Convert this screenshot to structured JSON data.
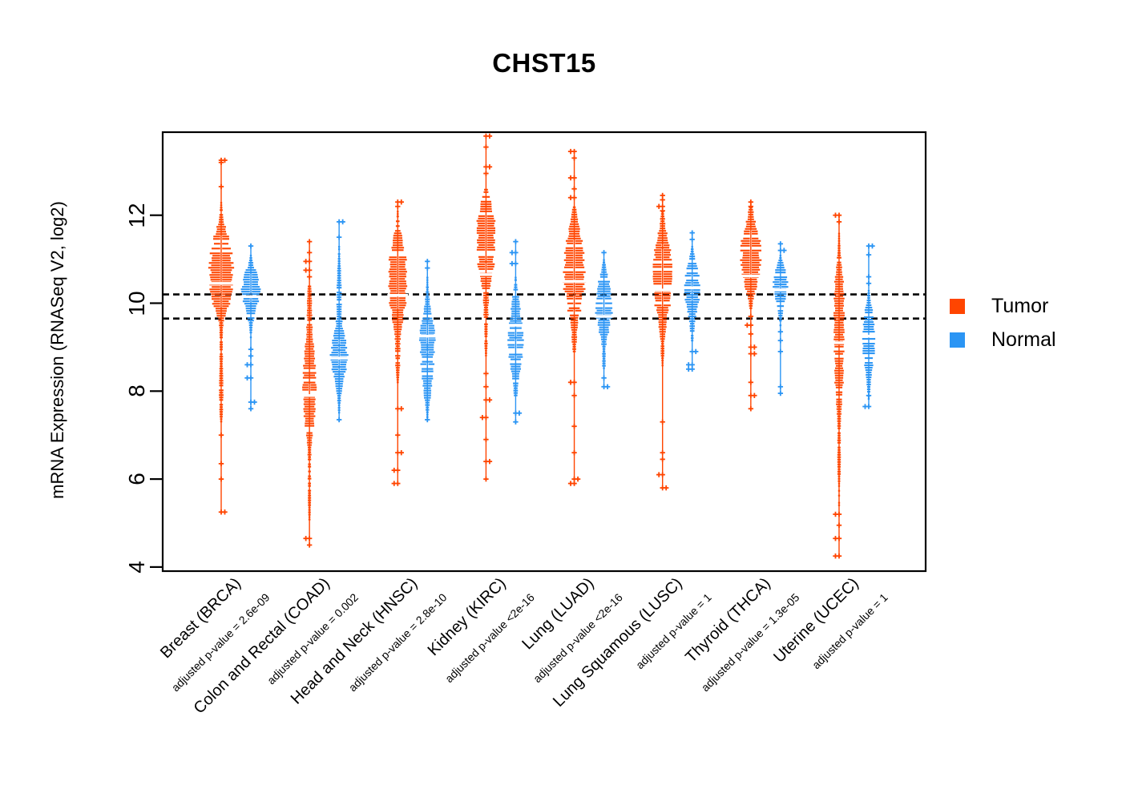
{
  "title": "CHST15",
  "y_axis": {
    "label": "mRNA Expression (RNASeq V2, log2)"
  },
  "legend": {
    "items": [
      {
        "label": "Tumor",
        "color": "#FF4500"
      },
      {
        "label": "Normal",
        "color": "#2B95F4"
      }
    ]
  },
  "chart_data": {
    "type": "violin-strip",
    "title": "CHST15",
    "ylabel": "mRNA Expression (RNASeq V2, log2)",
    "ylim": [
      3.9,
      13.9
    ],
    "y_ticks": [
      4,
      6,
      8,
      10,
      12
    ],
    "grid": false,
    "legend_position": "right",
    "reference_lines_dashed": [
      10.2,
      9.65
    ],
    "series_colors": {
      "tumor": "#FF4500",
      "normal": "#2B95F4"
    },
    "groups": [
      {
        "label": "Breast (BRCA)",
        "sublabel": "adjusted p-value = 2.6e-09",
        "tumor": {
          "median": 10.45,
          "profile": [
            [
              12.3,
              1
            ],
            [
              11.9,
              3
            ],
            [
              11.6,
              8
            ],
            [
              11.2,
              12
            ],
            [
              10.8,
              14
            ],
            [
              10.4,
              14
            ],
            [
              10.0,
              10
            ],
            [
              9.8,
              6
            ],
            [
              9.6,
              3
            ],
            [
              9.3,
              2
            ],
            [
              8.9,
              2
            ],
            [
              8.5,
              2
            ],
            [
              8.0,
              3
            ],
            [
              7.5,
              2
            ],
            [
              7.3,
              1
            ]
          ],
          "outliers": [
            13.25,
            13.2,
            12.65,
            7.0,
            6.35,
            6.0,
            5.25
          ]
        },
        "normal": {
          "median": 10.15,
          "profile": [
            [
              11.1,
              1
            ],
            [
              10.9,
              3
            ],
            [
              10.7,
              7
            ],
            [
              10.4,
              11
            ],
            [
              10.1,
              10
            ],
            [
              9.9,
              7
            ],
            [
              9.6,
              3
            ],
            [
              9.4,
              2
            ],
            [
              9.2,
              1
            ]
          ],
          "outliers": [
            11.3,
            8.95,
            8.8,
            8.6,
            8.3,
            7.75,
            7.6
          ]
        }
      },
      {
        "label": "Colon and Rectal (COAD)",
        "sublabel": "adjusted p-value = 0.002",
        "tumor": {
          "median": 7.9,
          "profile": [
            [
              10.4,
              2
            ],
            [
              10.0,
              3
            ],
            [
              9.6,
              3
            ],
            [
              9.3,
              4
            ],
            [
              8.8,
              6
            ],
            [
              8.4,
              8
            ],
            [
              8.0,
              8
            ],
            [
              7.6,
              7
            ],
            [
              7.2,
              5
            ],
            [
              6.9,
              3
            ],
            [
              6.5,
              2
            ],
            [
              6.1,
              2
            ],
            [
              5.6,
              2
            ],
            [
              5.0,
              1
            ]
          ],
          "outliers": [
            11.4,
            11.15,
            10.95,
            10.75,
            10.6,
            4.65,
            4.5
          ]
        },
        "normal": {
          "median": 8.75,
          "profile": [
            [
              11.3,
              1
            ],
            [
              10.8,
              2
            ],
            [
              10.3,
              3
            ],
            [
              9.9,
              3
            ],
            [
              9.5,
              4
            ],
            [
              9.15,
              8
            ],
            [
              8.85,
              10
            ],
            [
              8.5,
              8
            ],
            [
              8.15,
              4
            ],
            [
              7.8,
              2
            ],
            [
              7.5,
              1
            ]
          ],
          "outliers": [
            11.85,
            11.5,
            7.35
          ]
        }
      },
      {
        "label": "Head and Neck (HNSC)",
        "sublabel": "adjusted p-value = 2.8e-10",
        "tumor": {
          "median": 10.18,
          "profile": [
            [
              12.1,
              1
            ],
            [
              11.7,
              3
            ],
            [
              11.4,
              7
            ],
            [
              11.0,
              10
            ],
            [
              10.5,
              11
            ],
            [
              10.1,
              10
            ],
            [
              9.7,
              7
            ],
            [
              9.4,
              4
            ],
            [
              9.1,
              3
            ],
            [
              8.7,
              3
            ],
            [
              8.4,
              2
            ],
            [
              8.2,
              1
            ]
          ],
          "outliers": [
            12.3,
            12.2,
            7.6,
            7.0,
            6.6,
            6.2,
            5.9
          ]
        },
        "normal": {
          "median": 9.25,
          "profile": [
            [
              10.6,
              1
            ],
            [
              10.2,
              2
            ],
            [
              9.9,
              4
            ],
            [
              9.5,
              8
            ],
            [
              9.1,
              9
            ],
            [
              8.7,
              8
            ],
            [
              8.3,
              6
            ],
            [
              7.9,
              4
            ],
            [
              7.6,
              2
            ],
            [
              7.4,
              1
            ]
          ],
          "outliers": [
            10.95,
            10.8,
            7.35
          ]
        }
      },
      {
        "label": "Kidney (KIRC)",
        "sublabel": "adjusted p-value <2e-16",
        "tumor": {
          "median": 10.65,
          "profile": [
            [
              12.6,
              2
            ],
            [
              12.3,
              6
            ],
            [
              11.9,
              10
            ],
            [
              11.4,
              11
            ],
            [
              10.9,
              10
            ],
            [
              10.6,
              7
            ],
            [
              10.3,
              4
            ],
            [
              10.0,
              3
            ],
            [
              9.7,
              3
            ],
            [
              9.4,
              2
            ],
            [
              9.1,
              2
            ],
            [
              8.8,
              1
            ]
          ],
          "outliers": [
            13.8,
            13.55,
            13.1,
            12.95,
            8.4,
            8.1,
            7.8,
            7.4,
            6.9,
            6.4,
            6.0
          ]
        },
        "normal": {
          "median": 9.5,
          "profile": [
            [
              10.6,
              1
            ],
            [
              10.3,
              3
            ],
            [
              10.0,
              5
            ],
            [
              9.6,
              7
            ],
            [
              9.2,
              9
            ],
            [
              8.8,
              8
            ],
            [
              8.4,
              5
            ],
            [
              8.1,
              3
            ],
            [
              7.9,
              2
            ]
          ],
          "outliers": [
            11.4,
            11.15,
            10.9,
            7.5,
            7.3
          ]
        }
      },
      {
        "label": "Lung (LUAD)",
        "sublabel": "adjusted p-value <2e-16",
        "tumor": {
          "median": 10.5,
          "profile": [
            [
              12.2,
              2
            ],
            [
              11.8,
              5
            ],
            [
              11.5,
              9
            ],
            [
              11.0,
              12
            ],
            [
              10.5,
              13
            ],
            [
              10.1,
              10
            ],
            [
              9.8,
              7
            ],
            [
              9.5,
              4
            ],
            [
              9.2,
              3
            ],
            [
              8.9,
              2
            ]
          ],
          "outliers": [
            13.45,
            13.3,
            12.85,
            12.6,
            12.4,
            8.2,
            7.9,
            7.2,
            6.6,
            6.0,
            5.9
          ]
        },
        "normal": {
          "median": 9.7,
          "profile": [
            [
              11.0,
              1
            ],
            [
              10.7,
              4
            ],
            [
              10.4,
              8
            ],
            [
              10.1,
              10
            ],
            [
              9.8,
              10
            ],
            [
              9.5,
              7
            ],
            [
              9.2,
              4
            ],
            [
              9.0,
              2
            ],
            [
              8.6,
              2
            ],
            [
              8.5,
              1
            ]
          ],
          "outliers": [
            11.15,
            8.3,
            8.1
          ]
        }
      },
      {
        "label": "Lung Squamous (LUSC)",
        "sublabel": "adjusted p-value = 1",
        "tumor": {
          "median": 10.3,
          "profile": [
            [
              12.1,
              2
            ],
            [
              11.7,
              4
            ],
            [
              11.4,
              8
            ],
            [
              11.0,
              11
            ],
            [
              10.5,
              12
            ],
            [
              10.1,
              10
            ],
            [
              9.7,
              6
            ],
            [
              9.4,
              4
            ],
            [
              9.1,
              2
            ],
            [
              8.8,
              2
            ],
            [
              8.6,
              1
            ]
          ],
          "outliers": [
            12.45,
            12.35,
            12.2,
            12.1,
            7.3,
            6.6,
            6.45,
            6.1,
            5.8
          ]
        },
        "normal": {
          "median": 10.35,
          "profile": [
            [
              11.3,
              1
            ],
            [
              11.0,
              4
            ],
            [
              10.7,
              8
            ],
            [
              10.4,
              9
            ],
            [
              10.1,
              8
            ],
            [
              9.8,
              5
            ],
            [
              9.5,
              3
            ],
            [
              9.3,
              2
            ],
            [
              9.1,
              1
            ]
          ],
          "outliers": [
            11.6,
            11.45,
            8.9,
            8.6,
            8.5
          ]
        }
      },
      {
        "label": "Thyroid (THCA)",
        "sublabel": "adjusted p-value = 1.3e-05",
        "tumor": {
          "median": 10.62,
          "profile": [
            [
              12.2,
              2
            ],
            [
              11.9,
              5
            ],
            [
              11.6,
              10
            ],
            [
              11.2,
              12
            ],
            [
              10.8,
              11
            ],
            [
              10.4,
              7
            ],
            [
              10.1,
              3
            ],
            [
              9.9,
              2
            ]
          ],
          "outliers": [
            12.3,
            12.2,
            9.7,
            9.5,
            9.3,
            9.0,
            8.85,
            8.2,
            7.9,
            7.6
          ]
        },
        "normal": {
          "median": 10.3,
          "profile": [
            [
              11.1,
              1
            ],
            [
              10.9,
              4
            ],
            [
              10.7,
              8
            ],
            [
              10.4,
              9
            ],
            [
              10.1,
              7
            ],
            [
              9.9,
              4
            ],
            [
              9.7,
              2
            ],
            [
              9.5,
              1
            ]
          ],
          "outliers": [
            11.35,
            11.2,
            9.35,
            9.15,
            8.9,
            8.1,
            7.95
          ]
        }
      },
      {
        "label": "Uterine (UCEC)",
        "sublabel": "adjusted p-value = 1",
        "tumor": {
          "median": 9.1,
          "profile": [
            [
              11.6,
              1
            ],
            [
              11.2,
              2
            ],
            [
              10.9,
              3
            ],
            [
              10.6,
              5
            ],
            [
              10.2,
              6
            ],
            [
              9.8,
              6
            ],
            [
              9.4,
              6
            ],
            [
              9.0,
              6
            ],
            [
              8.6,
              5
            ],
            [
              8.2,
              5
            ],
            [
              7.9,
              4
            ],
            [
              7.6,
              3
            ],
            [
              7.3,
              2
            ],
            [
              7.0,
              2
            ],
            [
              6.6,
              2
            ],
            [
              6.2,
              2
            ],
            [
              5.8,
              1
            ],
            [
              5.4,
              1
            ]
          ],
          "outliers": [
            12.0,
            11.85,
            5.2,
            4.95,
            4.65,
            4.25
          ]
        },
        "normal": {
          "median": 9.25,
          "profile": [
            [
              10.3,
              1
            ],
            [
              10.0,
              3
            ],
            [
              9.8,
              5
            ],
            [
              9.5,
              7
            ],
            [
              9.2,
              8
            ],
            [
              8.9,
              7
            ],
            [
              8.6,
              5
            ],
            [
              8.3,
              3
            ],
            [
              8.0,
              2
            ],
            [
              7.8,
              1
            ]
          ],
          "outliers": [
            11.3,
            11.1,
            10.6,
            10.45,
            7.9,
            7.65
          ]
        }
      }
    ]
  }
}
